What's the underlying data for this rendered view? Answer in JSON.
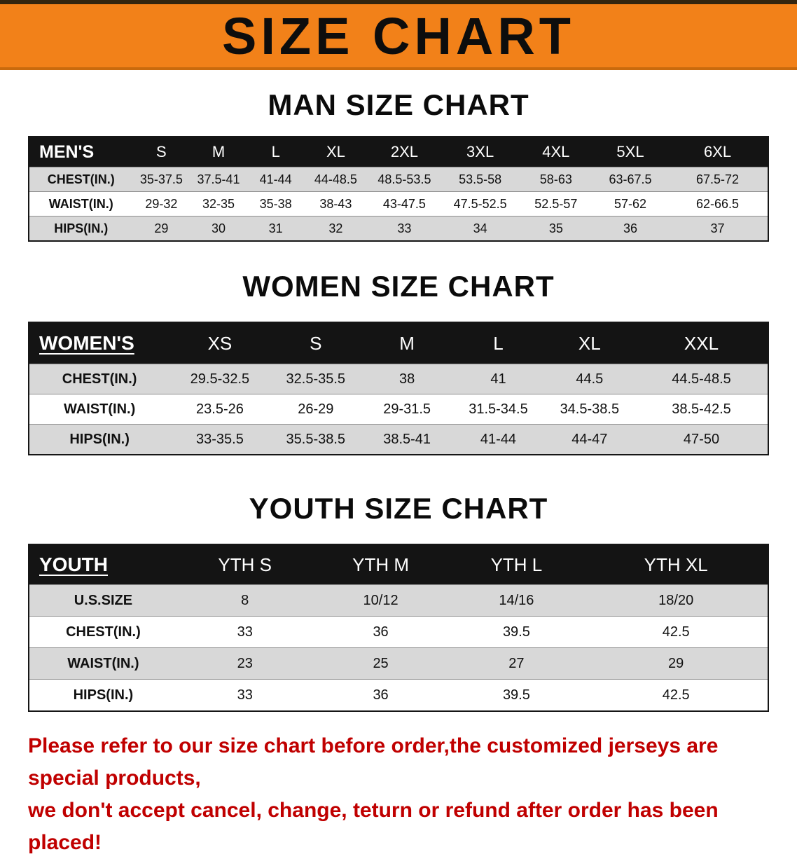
{
  "banner": {
    "title": "SIZE CHART"
  },
  "sections": [
    {
      "heading": "MAN SIZE CHART",
      "table": {
        "label": "MEN'S",
        "columns": [
          "S",
          "M",
          "L",
          "XL",
          "2XL",
          "3XL",
          "4XL",
          "5XL",
          "6XL"
        ],
        "rows": [
          {
            "label": "CHEST(IN.)",
            "values": [
              "35-37.5",
              "37.5-41",
              "41-44",
              "44-48.5",
              "48.5-53.5",
              "53.5-58",
              "58-63",
              "63-67.5",
              "67.5-72"
            ]
          },
          {
            "label": "WAIST(IN.)",
            "values": [
              "29-32",
              "32-35",
              "35-38",
              "38-43",
              "43-47.5",
              "47.5-52.5",
              "52.5-57",
              "57-62",
              "62-66.5"
            ]
          },
          {
            "label": "HIPS(IN.)",
            "values": [
              "29",
              "30",
              "31",
              "32",
              "33",
              "34",
              "35",
              "36",
              "37"
            ]
          }
        ]
      }
    },
    {
      "heading": "WOMEN SIZE CHART",
      "table": {
        "label": "WOMEN'S",
        "columns": [
          "XS",
          "S",
          "M",
          "L",
          "XL",
          "XXL"
        ],
        "rows": [
          {
            "label": "CHEST(IN.)",
            "values": [
              "29.5-32.5",
              "32.5-35.5",
              "38",
              "41",
              "44.5",
              "44.5-48.5"
            ]
          },
          {
            "label": "WAIST(IN.)",
            "values": [
              "23.5-26",
              "26-29",
              "29-31.5",
              "31.5-34.5",
              "34.5-38.5",
              "38.5-42.5"
            ]
          },
          {
            "label": "HIPS(IN.)",
            "values": [
              "33-35.5",
              "35.5-38.5",
              "38.5-41",
              "41-44",
              "44-47",
              "47-50"
            ]
          }
        ]
      }
    },
    {
      "heading": "YOUTH SIZE CHART",
      "table": {
        "label": "YOUTH",
        "columns": [
          "YTH S",
          "YTH M",
          "YTH L",
          "YTH XL"
        ],
        "rows": [
          {
            "label": "U.S.SIZE",
            "values": [
              "8",
              "10/12",
              "14/16",
              "18/20"
            ]
          },
          {
            "label": "CHEST(IN.)",
            "values": [
              "33",
              "36",
              "39.5",
              "42.5"
            ]
          },
          {
            "label": "WAIST(IN.)",
            "values": [
              "23",
              "25",
              "27",
              "29"
            ]
          },
          {
            "label": "HIPS(IN.)",
            "values": [
              "33",
              "36",
              "39.5",
              "42.5"
            ]
          }
        ]
      }
    }
  ],
  "footer": {
    "line1": "Please refer to our size chart before order,the customized jerseys are special products,",
    "line2": "we don't accept cancel, change, teturn or refund after order has been placed!"
  },
  "colors": {
    "banner_orange": "#f28119",
    "header_black": "#141414",
    "row_gray": "#d8d8d8",
    "warning_red": "#c00000"
  }
}
